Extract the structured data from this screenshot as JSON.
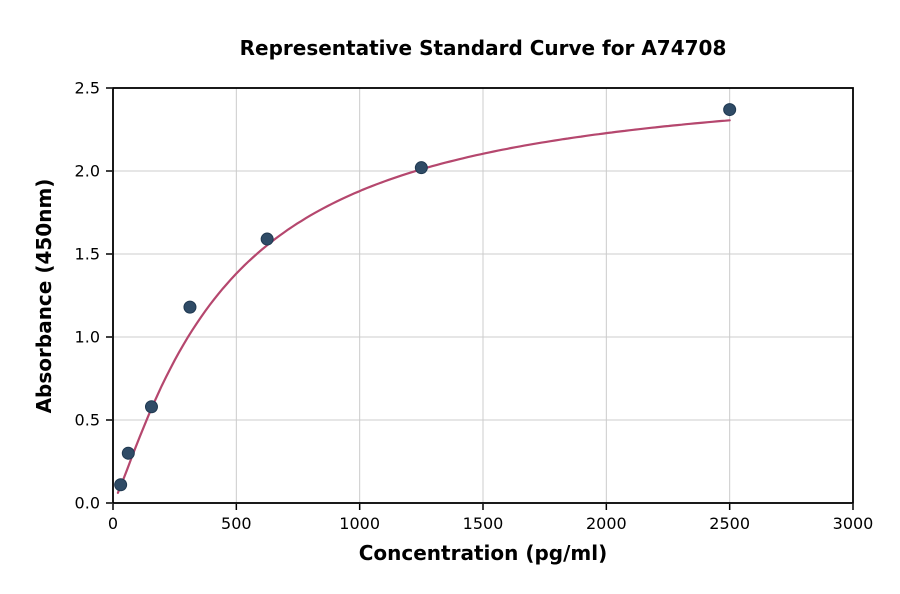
{
  "figure": {
    "background": "#ffffff"
  },
  "chart_data": {
    "type": "scatter",
    "title": "Representative Standard Curve for A74708",
    "xlabel": "Concentration (pg/ml)",
    "ylabel": "Absorbance (450nm)",
    "xlim": [
      0,
      3000
    ],
    "ylim": [
      0,
      2.5
    ],
    "x_ticks": [
      0,
      500,
      1000,
      1500,
      2000,
      2500,
      3000
    ],
    "x_tick_labels": [
      "0",
      "500",
      "1000",
      "1500",
      "2000",
      "2500",
      "3000"
    ],
    "y_ticks": [
      0,
      0.5,
      1,
      1.5,
      2,
      2.5
    ],
    "y_tick_labels": [
      "0.0",
      "0.5",
      "1.0",
      "1.5",
      "2.0",
      "2.5"
    ],
    "grid": true,
    "legend_position": "none",
    "points": [
      {
        "x": 31,
        "y": 0.11
      },
      {
        "x": 62,
        "y": 0.3
      },
      {
        "x": 156,
        "y": 0.58
      },
      {
        "x": 312,
        "y": 1.18
      },
      {
        "x": 625,
        "y": 1.59
      },
      {
        "x": 1250,
        "y": 2.02
      },
      {
        "x": 2500,
        "y": 2.37
      }
    ],
    "fit_curve": {
      "model": "4pl",
      "a": 0,
      "b": 1.2,
      "c": 450,
      "d": 2.6,
      "x_start": 20,
      "x_end": 2500
    },
    "colors": {
      "curve": "#b5476e",
      "point_fill": "#2f4b66",
      "point_edge": "#1f3850",
      "grid": "#cccccc",
      "axis": "#000000"
    }
  }
}
